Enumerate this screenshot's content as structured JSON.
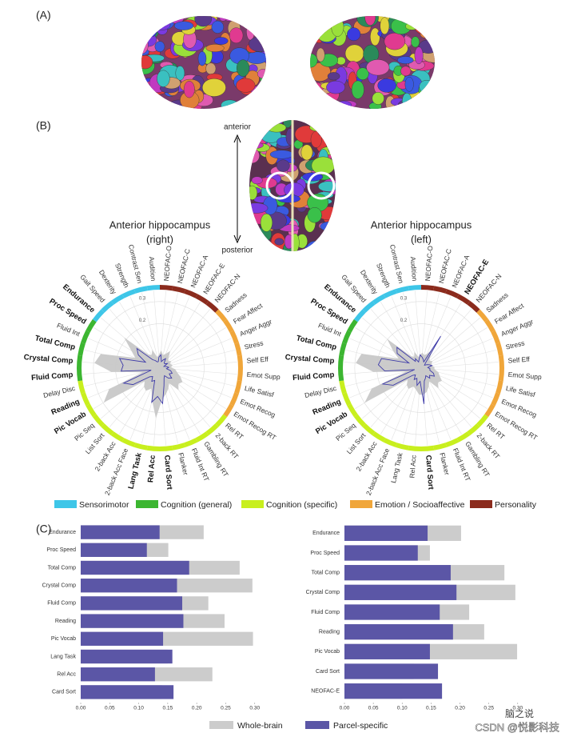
{
  "panel_labels": [
    "(A)",
    "(B)",
    "(C)"
  ],
  "orientation": {
    "anterior": "anterior",
    "posterior": "posterior"
  },
  "group_legend": [
    {
      "name": "Sensorimotor",
      "color": "#3ec6e8"
    },
    {
      "name": "Cognition (general)",
      "color": "#3cb631"
    },
    {
      "name": "Cognition (specific)",
      "color": "#c8ef1e"
    },
    {
      "name": "Emotion / Socioaffective",
      "color": "#f0a63a"
    },
    {
      "name": "Personality",
      "color": "#8b2b1d"
    }
  ],
  "bar_legend": [
    {
      "name": "Whole-brain",
      "color": "#cccccc"
    },
    {
      "name": "Parcel-specific",
      "color": "#5b56a6"
    }
  ],
  "watermark": [
    "脑之说",
    "CSDN @悦影科技"
  ],
  "chart_data": [
    {
      "type": "radar",
      "title": "Anterior hippocampus",
      "subtitle": "(right)",
      "categories": [
        "NEOFAC-O",
        "NEOFAC-C",
        "NEOFAC-A",
        "NEOFAC-E",
        "NEOFAC-N",
        "Sadness",
        "Fear Affect",
        "Anger Aggr",
        "Stress",
        "Self Eff",
        "Emot Supp",
        "Life Satisf",
        "Emot Recog",
        "Emot Recog RT",
        "Rel RT",
        "2-back RT",
        "Gambling RT",
        "Fluid Int RT",
        "Flanker",
        "Card Sort",
        "Rel Acc",
        "Lang Task",
        "2-back Acc Face",
        "2-back Acc",
        "List Sort",
        "Pic Seq",
        "Pic Vocab",
        "Reading",
        "Delay Disc",
        "Fluid Comp",
        "Crystal Comp",
        "Total Comp",
        "Fluid Int",
        "Proc Speed",
        "Endurance",
        "Gait Speed",
        "Dexterity",
        "Strength",
        "Contrast Sen",
        "Audition"
      ],
      "bold": [
        false,
        false,
        false,
        false,
        false,
        false,
        false,
        false,
        false,
        false,
        false,
        false,
        false,
        false,
        false,
        false,
        false,
        false,
        false,
        true,
        true,
        true,
        false,
        false,
        false,
        false,
        true,
        true,
        false,
        true,
        true,
        true,
        false,
        true,
        true,
        false,
        false,
        false,
        false,
        false
      ],
      "category_colors": [
        "#8b2b1d",
        "#8b2b1d",
        "#8b2b1d",
        "#8b2b1d",
        "#8b2b1d",
        "#f0a63a",
        "#f0a63a",
        "#f0a63a",
        "#f0a63a",
        "#f0a63a",
        "#f0a63a",
        "#f0a63a",
        "#f0a63a",
        "#f0a63a",
        "#c8ef1e",
        "#c8ef1e",
        "#c8ef1e",
        "#c8ef1e",
        "#c8ef1e",
        "#c8ef1e",
        "#c8ef1e",
        "#c8ef1e",
        "#c8ef1e",
        "#c8ef1e",
        "#c8ef1e",
        "#c8ef1e",
        "#c8ef1e",
        "#c8ef1e",
        "#c8ef1e",
        "#3cb631",
        "#3cb631",
        "#3cb631",
        "#3cb631",
        "#3cb631",
        "#3ec6e8",
        "#3ec6e8",
        "#3ec6e8",
        "#3ec6e8",
        "#3ec6e8",
        "#3ec6e8"
      ],
      "rlim": [
        0,
        0.35
      ],
      "rticks": [
        0.2,
        0.3
      ],
      "series": [
        {
          "color": "#c8c8c8",
          "values": [
            0.08,
            0.06,
            0.07,
            0.09,
            0.06,
            0.05,
            0.06,
            0.05,
            0.06,
            0.05,
            0.07,
            0.08,
            0.1,
            0.12,
            0.11,
            0.13,
            0.08,
            0.1,
            0.12,
            0.14,
            0.227,
            0.15,
            0.1,
            0.12,
            0.11,
            0.09,
            0.297,
            0.248,
            0.08,
            0.22,
            0.296,
            0.274,
            0.12,
            0.151,
            0.212,
            0.08,
            0.07,
            0.09,
            0.05,
            0.06
          ]
        },
        {
          "color": "#3d3aa8",
          "values": [
            0.06,
            0.03,
            0.04,
            0.05,
            0.03,
            0.03,
            0.04,
            0.02,
            0.03,
            0.04,
            0.03,
            0.05,
            0.06,
            0.05,
            0.07,
            0.06,
            0.04,
            0.05,
            0.08,
            0.16,
            0.128,
            0.158,
            0.06,
            0.07,
            0.05,
            0.06,
            0.142,
            0.177,
            0.04,
            0.175,
            0.166,
            0.187,
            0.07,
            0.114,
            0.136,
            0.05,
            0.04,
            0.03,
            0.03,
            0.05
          ]
        }
      ]
    },
    {
      "type": "radar",
      "title": "Anterior hippocampus",
      "subtitle": "(left)",
      "categories": [
        "NEOFAC-O",
        "NEOFAC-C",
        "NEOFAC-A",
        "NEOFAC-E",
        "NEOFAC-N",
        "Sadness",
        "Fear Affect",
        "Anger Aggr",
        "Stress",
        "Self Eff",
        "Emot Supp",
        "Life Satisf",
        "Emot Recog",
        "Emot Recog RT",
        "Rel RT",
        "2-back RT",
        "Gambling RT",
        "Fluid Int RT",
        "Flanker",
        "Card Sort",
        "Rel Acc",
        "Lang Task",
        "2-back Acc Face",
        "2-back Acc",
        "List Sort",
        "Pic Seq",
        "Pic Vocab",
        "Reading",
        "Delay Disc",
        "Fluid Comp",
        "Crystal Comp",
        "Total Comp",
        "Fluid Int",
        "Proc Speed",
        "Endurance",
        "Gait Speed",
        "Dexterity",
        "Strength",
        "Contrast Sen",
        "Audition"
      ],
      "bold": [
        false,
        false,
        false,
        true,
        false,
        false,
        false,
        false,
        false,
        false,
        false,
        false,
        false,
        false,
        false,
        false,
        false,
        false,
        false,
        true,
        false,
        false,
        false,
        false,
        false,
        false,
        true,
        true,
        false,
        true,
        true,
        true,
        false,
        true,
        true,
        false,
        false,
        false,
        false,
        false
      ],
      "category_colors": [
        "#8b2b1d",
        "#8b2b1d",
        "#8b2b1d",
        "#8b2b1d",
        "#8b2b1d",
        "#f0a63a",
        "#f0a63a",
        "#f0a63a",
        "#f0a63a",
        "#f0a63a",
        "#f0a63a",
        "#f0a63a",
        "#f0a63a",
        "#f0a63a",
        "#c8ef1e",
        "#c8ef1e",
        "#c8ef1e",
        "#c8ef1e",
        "#c8ef1e",
        "#c8ef1e",
        "#c8ef1e",
        "#c8ef1e",
        "#c8ef1e",
        "#c8ef1e",
        "#c8ef1e",
        "#c8ef1e",
        "#c8ef1e",
        "#c8ef1e",
        "#c8ef1e",
        "#3cb631",
        "#3cb631",
        "#3cb631",
        "#3cb631",
        "#3cb631",
        "#3ec6e8",
        "#3ec6e8",
        "#3ec6e8",
        "#3ec6e8",
        "#3ec6e8",
        "#3ec6e8"
      ],
      "rlim": [
        0,
        0.35
      ],
      "rticks": [
        0.2,
        0.3
      ],
      "series": [
        {
          "color": "#c8c8c8",
          "values": [
            0.07,
            0.06,
            0.07,
            0.1,
            0.06,
            0.05,
            0.06,
            0.05,
            0.05,
            0.06,
            0.06,
            0.08,
            0.09,
            0.11,
            0.1,
            0.12,
            0.07,
            0.09,
            0.11,
            0.12,
            0.12,
            0.1,
            0.09,
            0.11,
            0.1,
            0.08,
            0.299,
            0.242,
            0.07,
            0.216,
            0.296,
            0.277,
            0.11,
            0.148,
            0.202,
            0.07,
            0.06,
            0.08,
            0.05,
            0.06
          ]
        },
        {
          "color": "#3d3aa8",
          "values": [
            0.05,
            0.04,
            0.03,
            0.169,
            0.03,
            0.02,
            0.03,
            0.04,
            0.05,
            0.03,
            0.04,
            0.04,
            0.06,
            0.07,
            0.05,
            0.06,
            0.04,
            0.05,
            0.06,
            0.162,
            0.06,
            0.08,
            0.05,
            0.06,
            0.04,
            0.05,
            0.148,
            0.188,
            0.03,
            0.165,
            0.194,
            0.184,
            0.06,
            0.127,
            0.144,
            0.04,
            0.05,
            0.03,
            0.04,
            0.06
          ]
        }
      ]
    },
    {
      "type": "bar",
      "orientation": "horizontal",
      "categories": [
        "Endurance",
        "Proc Speed",
        "Total Comp",
        "Crystal Comp",
        "Fluid Comp",
        "Reading",
        "Pic Vocab",
        "Lang Task",
        "Rel Acc",
        "Card Sort"
      ],
      "xlim": [
        0,
        0.31
      ],
      "xticks": [
        {
          "value": 0,
          "label": "0.00"
        },
        0.05,
        {
          "value": 0.1,
          "label": "0.10"
        },
        0.15,
        {
          "value": 0.2,
          "label": "0.20"
        },
        0.25,
        {
          "value": 0.3,
          "label": "0.30"
        }
      ],
      "series": [
        {
          "color": "#cccccc",
          "values": [
            0.212,
            0.151,
            0.274,
            0.296,
            0.22,
            0.248,
            0.297,
            0.15,
            0.227,
            0.14
          ]
        },
        {
          "color": "#5b56a6",
          "values": [
            0.136,
            0.114,
            0.187,
            0.166,
            0.175,
            0.177,
            0.142,
            0.158,
            0.128,
            0.16
          ]
        }
      ]
    },
    {
      "type": "bar",
      "orientation": "horizontal",
      "categories": [
        "Endurance",
        "Proc Speed",
        "Total Comp",
        "Crystal Comp",
        "Fluid Comp",
        "Reading",
        "Pic Vocab",
        "Card Sort",
        "NEOFAC-E"
      ],
      "xlim": [
        0,
        0.31
      ],
      "xticks": [
        {
          "value": 0,
          "label": "0.00"
        },
        0.05,
        {
          "value": 0.1,
          "label": "0.10"
        },
        0.15,
        {
          "value": 0.2,
          "label": "0.20"
        },
        0.25,
        {
          "value": 0.3,
          "label": "0.30"
        }
      ],
      "series": [
        {
          "color": "#cccccc",
          "values": [
            0.202,
            0.148,
            0.277,
            0.296,
            0.216,
            0.242,
            0.299,
            0.12,
            0.1
          ]
        },
        {
          "color": "#5b56a6",
          "values": [
            0.144,
            0.127,
            0.184,
            0.194,
            0.165,
            0.188,
            0.148,
            0.162,
            0.169
          ]
        }
      ]
    }
  ]
}
